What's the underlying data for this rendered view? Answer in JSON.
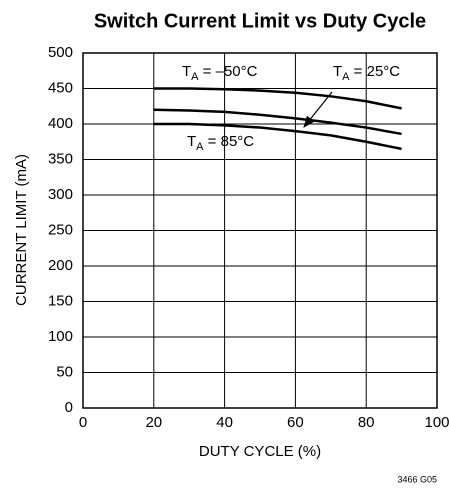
{
  "chart_data": {
    "type": "line",
    "title": "Switch Current Limit vs Duty Cycle",
    "x_label": "DUTY CYCLE (%)",
    "y_label": "CURRENT LIMIT (mA)",
    "footnote": "3466 G05",
    "x": [
      20,
      30,
      40,
      50,
      60,
      70,
      80,
      90
    ],
    "series": [
      {
        "color": "#000000",
        "values": [
          450,
          450,
          449,
          447,
          444,
          439,
          432,
          422
        ]
      },
      {
        "color": "#000000",
        "values": [
          420,
          419,
          417,
          413,
          408,
          402,
          395,
          386
        ]
      },
      {
        "color": "#000000",
        "values": [
          400,
          400,
          398,
          395,
          390,
          384,
          375,
          365
        ]
      }
    ],
    "annotations": [
      {
        "main": "T",
        "sub": "A",
        "rest": " = –50°C"
      },
      {
        "main": "T",
        "sub": "A",
        "rest": " = 25°C"
      },
      {
        "main": "T",
        "sub": "A",
        "rest": " = 85°C"
      }
    ],
    "xlim": [
      0,
      100
    ],
    "xticks": [
      0,
      20,
      40,
      60,
      80,
      100
    ],
    "ylim": [
      0,
      500
    ],
    "yticks": [
      0,
      50,
      100,
      150,
      200,
      250,
      300,
      350,
      400,
      450,
      500
    ],
    "grid": true
  }
}
